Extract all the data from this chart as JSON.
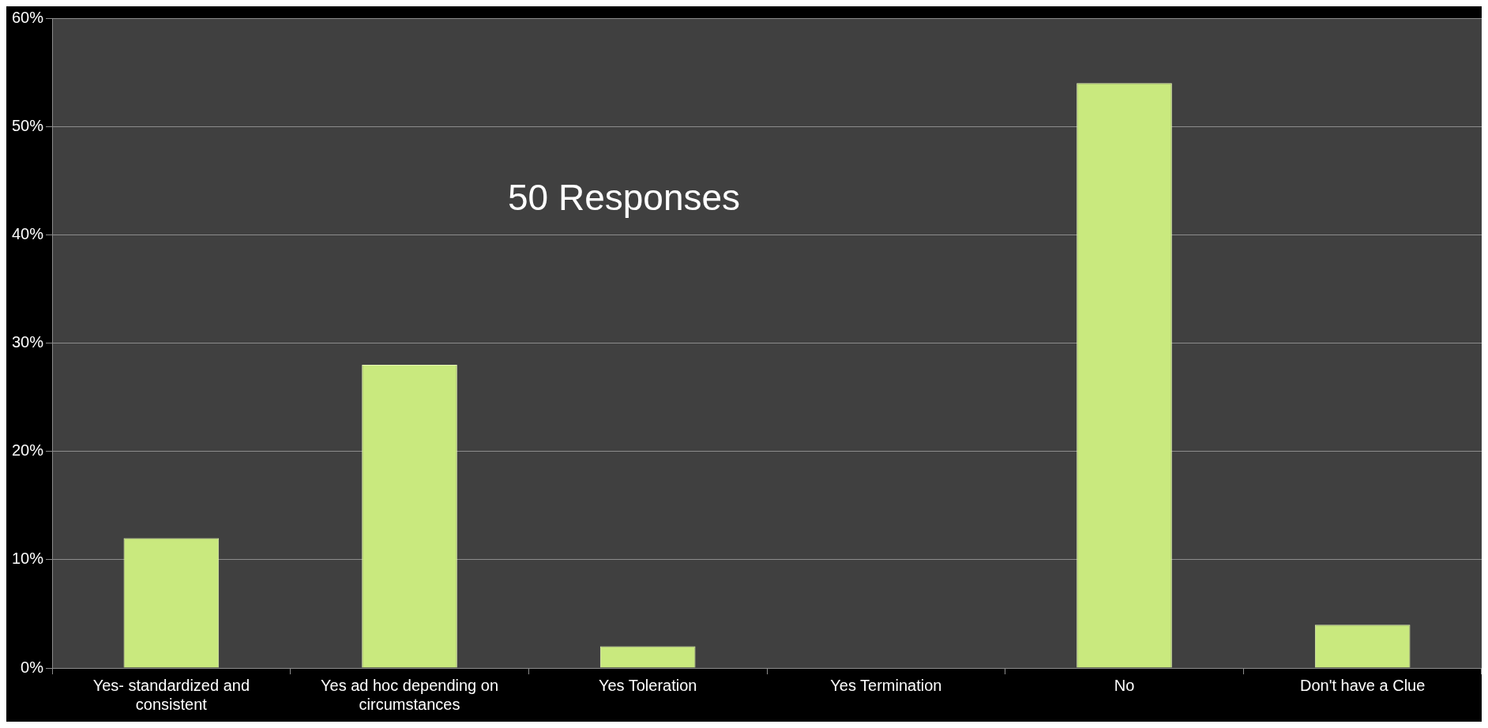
{
  "chart_data": {
    "type": "bar",
    "categories": [
      "Yes- standardized and consistent",
      "Yes ad hoc depending on circumstances",
      "Yes Toleration",
      "Yes Termination",
      "No",
      "Don't have a Clue"
    ],
    "values": [
      12,
      28,
      2,
      0,
      54,
      4
    ],
    "color": "#c9e97e",
    "ylim": [
      0,
      60
    ],
    "yticks": [
      {
        "value": 0,
        "label": "0%"
      },
      {
        "value": 10,
        "label": "10%"
      },
      {
        "value": 20,
        "label": "20%"
      },
      {
        "value": 30,
        "label": "30%"
      },
      {
        "value": 40,
        "label": "40%"
      },
      {
        "value": 50,
        "label": "50%"
      },
      {
        "value": 60,
        "label": "60%"
      }
    ],
    "grid": "y",
    "legend": false,
    "annotations": [
      "50 Responses"
    ]
  }
}
